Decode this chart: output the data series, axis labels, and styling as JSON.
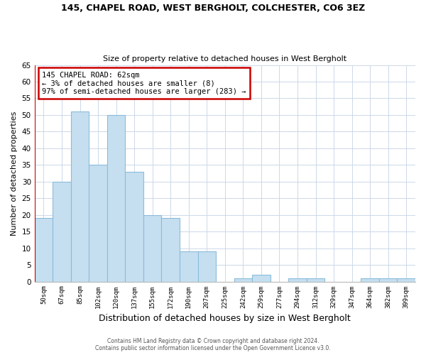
{
  "title1": "145, CHAPEL ROAD, WEST BERGHOLT, COLCHESTER, CO6 3EZ",
  "title2": "Size of property relative to detached houses in West Bergholt",
  "xlabel": "Distribution of detached houses by size in West Bergholt",
  "ylabel": "Number of detached properties",
  "bin_labels": [
    "50sqm",
    "67sqm",
    "85sqm",
    "102sqm",
    "120sqm",
    "137sqm",
    "155sqm",
    "172sqm",
    "190sqm",
    "207sqm",
    "225sqm",
    "242sqm",
    "259sqm",
    "277sqm",
    "294sqm",
    "312sqm",
    "329sqm",
    "347sqm",
    "364sqm",
    "382sqm",
    "399sqm"
  ],
  "bar_heights": [
    19,
    30,
    51,
    35,
    50,
    33,
    20,
    19,
    9,
    9,
    0,
    1,
    2,
    0,
    1,
    1,
    0,
    0,
    1,
    1,
    1
  ],
  "bar_color": "#c5dff0",
  "bar_edge_color": "#8bbcda",
  "annotation_title": "145 CHAPEL ROAD: 62sqm",
  "annotation_line1": "← 3% of detached houses are smaller (8)",
  "annotation_line2": "97% of semi-detached houses are larger (283) →",
  "annotation_box_color": "#ffffff",
  "annotation_box_edge_color": "#cc0000",
  "marker_line_color": "#cc0000",
  "ylim": [
    0,
    65
  ],
  "yticks": [
    0,
    5,
    10,
    15,
    20,
    25,
    30,
    35,
    40,
    45,
    50,
    55,
    60,
    65
  ],
  "footer_line1": "Contains HM Land Registry data © Crown copyright and database right 2024.",
  "footer_line2": "Contains public sector information licensed under the Open Government Licence v3.0.",
  "background_color": "#ffffff",
  "grid_color": "#ccd8e8",
  "fig_width": 6.0,
  "fig_height": 5.0,
  "dpi": 100
}
